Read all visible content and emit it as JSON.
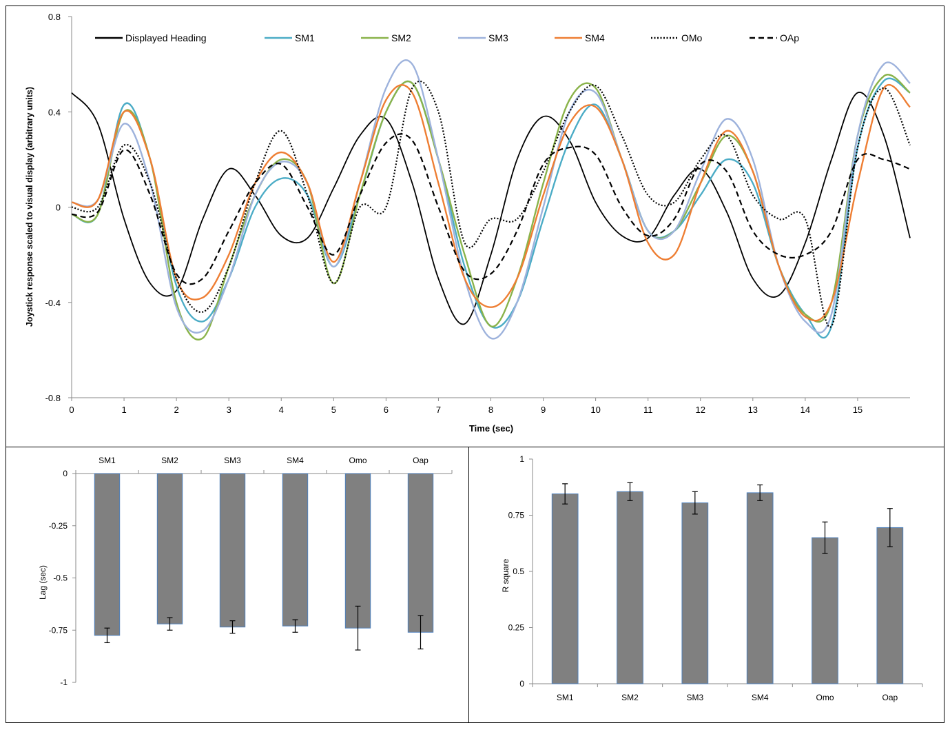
{
  "chart_data": [
    {
      "type": "line",
      "title": "",
      "xlabel": "Time (sec)",
      "ylabel": "Joystick response scaled to visual display (arbitrary units)",
      "xlim": [
        0,
        16
      ],
      "ylim": [
        -0.8,
        0.8
      ],
      "x_ticks": [
        "0",
        "1",
        "2",
        "3",
        "4",
        "5",
        "6",
        "7",
        "8",
        "9",
        "10",
        "11",
        "12",
        "13",
        "14",
        "15"
      ],
      "y_ticks": [
        "0.8",
        "0.4",
        "0",
        "-0.4",
        "-0.8"
      ],
      "legend_position": "top",
      "grid": false,
      "x": [
        0,
        0.5,
        1,
        1.5,
        2,
        2.5,
        3,
        3.5,
        4,
        4.5,
        5,
        5.5,
        6,
        6.5,
        7,
        7.5,
        8,
        8.5,
        9,
        9.5,
        10,
        10.5,
        11,
        11.5,
        12,
        12.5,
        13,
        13.5,
        14,
        14.5,
        15,
        15.5,
        16
      ],
      "series": [
        {
          "name": "Displayed Heading",
          "color": "#000000",
          "dash": "solid",
          "values": [
            0.48,
            0.35,
            -0.05,
            -0.32,
            -0.35,
            -0.05,
            0.16,
            0.05,
            -0.12,
            -0.13,
            0.08,
            0.3,
            0.37,
            0.1,
            -0.3,
            -0.49,
            -0.2,
            0.2,
            0.38,
            0.28,
            0.02,
            -0.12,
            -0.13,
            0.05,
            0.16,
            -0.02,
            -0.3,
            -0.37,
            -0.15,
            0.2,
            0.48,
            0.3,
            -0.13
          ]
        },
        {
          "name": "SM1",
          "color": "#4BACC6",
          "dash": "solid",
          "values": [
            -0.03,
            -0.03,
            0.43,
            0.2,
            -0.33,
            -0.48,
            -0.3,
            0.0,
            0.12,
            0.05,
            -0.25,
            0.05,
            0.4,
            0.52,
            0.2,
            -0.25,
            -0.5,
            -0.4,
            -0.05,
            0.28,
            0.43,
            0.2,
            -0.1,
            -0.1,
            0.05,
            0.2,
            0.1,
            -0.25,
            -0.45,
            -0.5,
            0.25,
            0.53,
            0.48
          ]
        },
        {
          "name": "SM2",
          "color": "#8AB34A",
          "dash": "solid",
          "values": [
            -0.03,
            -0.03,
            0.4,
            0.2,
            -0.4,
            -0.55,
            -0.25,
            0.05,
            0.2,
            0.1,
            -0.32,
            0.05,
            0.4,
            0.52,
            0.2,
            -0.2,
            -0.5,
            -0.3,
            0.1,
            0.45,
            0.5,
            0.2,
            -0.1,
            -0.1,
            0.1,
            0.3,
            0.15,
            -0.25,
            -0.45,
            -0.4,
            0.3,
            0.55,
            0.48
          ]
        },
        {
          "name": "SM3",
          "color": "#9DB2DC",
          "dash": "solid",
          "values": [
            0.02,
            0.03,
            0.35,
            0.1,
            -0.42,
            -0.52,
            -0.3,
            0.05,
            0.19,
            0.1,
            -0.25,
            0.1,
            0.5,
            0.6,
            0.2,
            -0.3,
            -0.55,
            -0.4,
            0.0,
            0.4,
            0.48,
            0.2,
            -0.1,
            -0.1,
            0.15,
            0.37,
            0.2,
            -0.25,
            -0.48,
            -0.45,
            0.3,
            0.6,
            0.52
          ]
        },
        {
          "name": "SM4",
          "color": "#EE7E33",
          "dash": "solid",
          "values": [
            0.02,
            0.03,
            0.4,
            0.2,
            -0.3,
            -0.38,
            -0.2,
            0.1,
            0.23,
            0.1,
            -0.23,
            0.1,
            0.45,
            0.48,
            0.1,
            -0.3,
            -0.42,
            -0.3,
            0.05,
            0.35,
            0.42,
            0.2,
            -0.15,
            -0.2,
            0.1,
            0.32,
            0.15,
            -0.25,
            -0.46,
            -0.4,
            0.1,
            0.5,
            0.42
          ]
        },
        {
          "name": "OMo",
          "color": "#000000",
          "dash": "dotted",
          "values": [
            0.0,
            0.0,
            0.26,
            0.1,
            -0.3,
            -0.44,
            -0.25,
            0.1,
            0.32,
            0.05,
            -0.32,
            0.0,
            0.0,
            0.5,
            0.4,
            -0.15,
            -0.05,
            -0.05,
            0.15,
            0.4,
            0.51,
            0.3,
            0.05,
            0.02,
            0.2,
            0.3,
            0.05,
            -0.05,
            -0.05,
            -0.5,
            0.25,
            0.5,
            0.26
          ]
        },
        {
          "name": "OAp",
          "color": "#000000",
          "dash": "dashed",
          "values": [
            -0.03,
            -0.02,
            0.24,
            0.05,
            -0.28,
            -0.3,
            -0.1,
            0.1,
            0.18,
            0.0,
            -0.2,
            0.05,
            0.27,
            0.28,
            0.0,
            -0.27,
            -0.28,
            -0.1,
            0.18,
            0.25,
            0.22,
            0.0,
            -0.12,
            -0.05,
            0.18,
            0.15,
            -0.1,
            -0.2,
            -0.2,
            -0.1,
            0.2,
            0.2,
            0.16
          ]
        }
      ]
    },
    {
      "type": "bar",
      "title": "",
      "xlabel": "",
      "ylabel": "Lag (sec)",
      "ylim": [
        -1,
        0
      ],
      "y_ticks": [
        "0",
        "-0.25",
        "-0.5",
        "-0.75",
        "-1"
      ],
      "categories": [
        "SM1",
        "SM2",
        "SM3",
        "SM4",
        "Omo",
        "Oap"
      ],
      "values": [
        -0.775,
        -0.72,
        -0.735,
        -0.73,
        -0.74,
        -0.76
      ],
      "errors": [
        0.035,
        0.03,
        0.03,
        0.03,
        0.105,
        0.08
      ],
      "bar_color": "#808080",
      "edge_color": "#4F81BD"
    },
    {
      "type": "bar",
      "title": "",
      "xlabel": "",
      "ylabel": "R square",
      "ylim": [
        0,
        1
      ],
      "y_ticks": [
        "1",
        "0.75",
        "0.5",
        "0.25",
        "0"
      ],
      "categories": [
        "SM1",
        "SM2",
        "SM3",
        "SM4",
        "Omo",
        "Oap"
      ],
      "values": [
        0.845,
        0.855,
        0.805,
        0.85,
        0.65,
        0.695
      ],
      "errors": [
        0.045,
        0.04,
        0.05,
        0.035,
        0.07,
        0.085
      ],
      "bar_color": "#808080",
      "edge_color": "#4F81BD"
    }
  ]
}
